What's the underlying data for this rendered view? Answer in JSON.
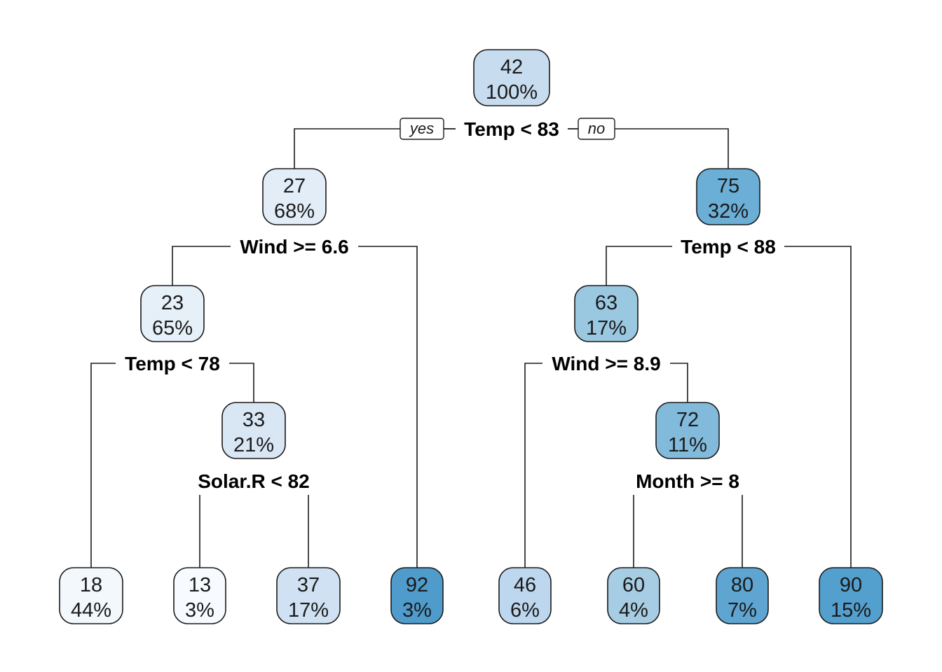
{
  "tree": {
    "branch_labels": {
      "yes": "yes",
      "no": "no"
    },
    "nodes": [
      {
        "id": "n1",
        "value": "42",
        "percent": "100%",
        "color": "#c7dcef"
      },
      {
        "id": "n2",
        "value": "27",
        "percent": "68%",
        "color": "#e2edf8"
      },
      {
        "id": "n3",
        "value": "75",
        "percent": "32%",
        "color": "#6baed6"
      },
      {
        "id": "n4",
        "value": "23",
        "percent": "65%",
        "color": "#e6f0f9"
      },
      {
        "id": "n7",
        "value": "63",
        "percent": "17%",
        "color": "#9ac8e0"
      },
      {
        "id": "n9",
        "value": "33",
        "percent": "21%",
        "color": "#d9e7f5"
      },
      {
        "id": "n15",
        "value": "72",
        "percent": "11%",
        "color": "#82badb"
      },
      {
        "id": "l1",
        "value": "18",
        "percent": "44%",
        "color": "#f3f8fd"
      },
      {
        "id": "l2",
        "value": "13",
        "percent": "3%",
        "color": "#f7fbff"
      },
      {
        "id": "l3",
        "value": "37",
        "percent": "17%",
        "color": "#cfe1f2"
      },
      {
        "id": "l4",
        "value": "92",
        "percent": "3%",
        "color": "#4f9bcb"
      },
      {
        "id": "l5",
        "value": "46",
        "percent": "6%",
        "color": "#bdd7ee"
      },
      {
        "id": "l6",
        "value": "60",
        "percent": "4%",
        "color": "#a6cde3"
      },
      {
        "id": "l7",
        "value": "80",
        "percent": "7%",
        "color": "#5fa5d1"
      },
      {
        "id": "l8",
        "value": "90",
        "percent": "15%",
        "color": "#539fcd"
      }
    ],
    "splits": [
      {
        "id": "s1",
        "label": "Temp < 83"
      },
      {
        "id": "s2",
        "label": "Wind >= 6.6"
      },
      {
        "id": "s3",
        "label": "Temp < 88"
      },
      {
        "id": "s4",
        "label": "Temp < 78"
      },
      {
        "id": "s5",
        "label": "Wind >= 8.9"
      },
      {
        "id": "s6",
        "label": "Solar.R < 82"
      },
      {
        "id": "s7",
        "label": "Month >= 8"
      }
    ]
  }
}
